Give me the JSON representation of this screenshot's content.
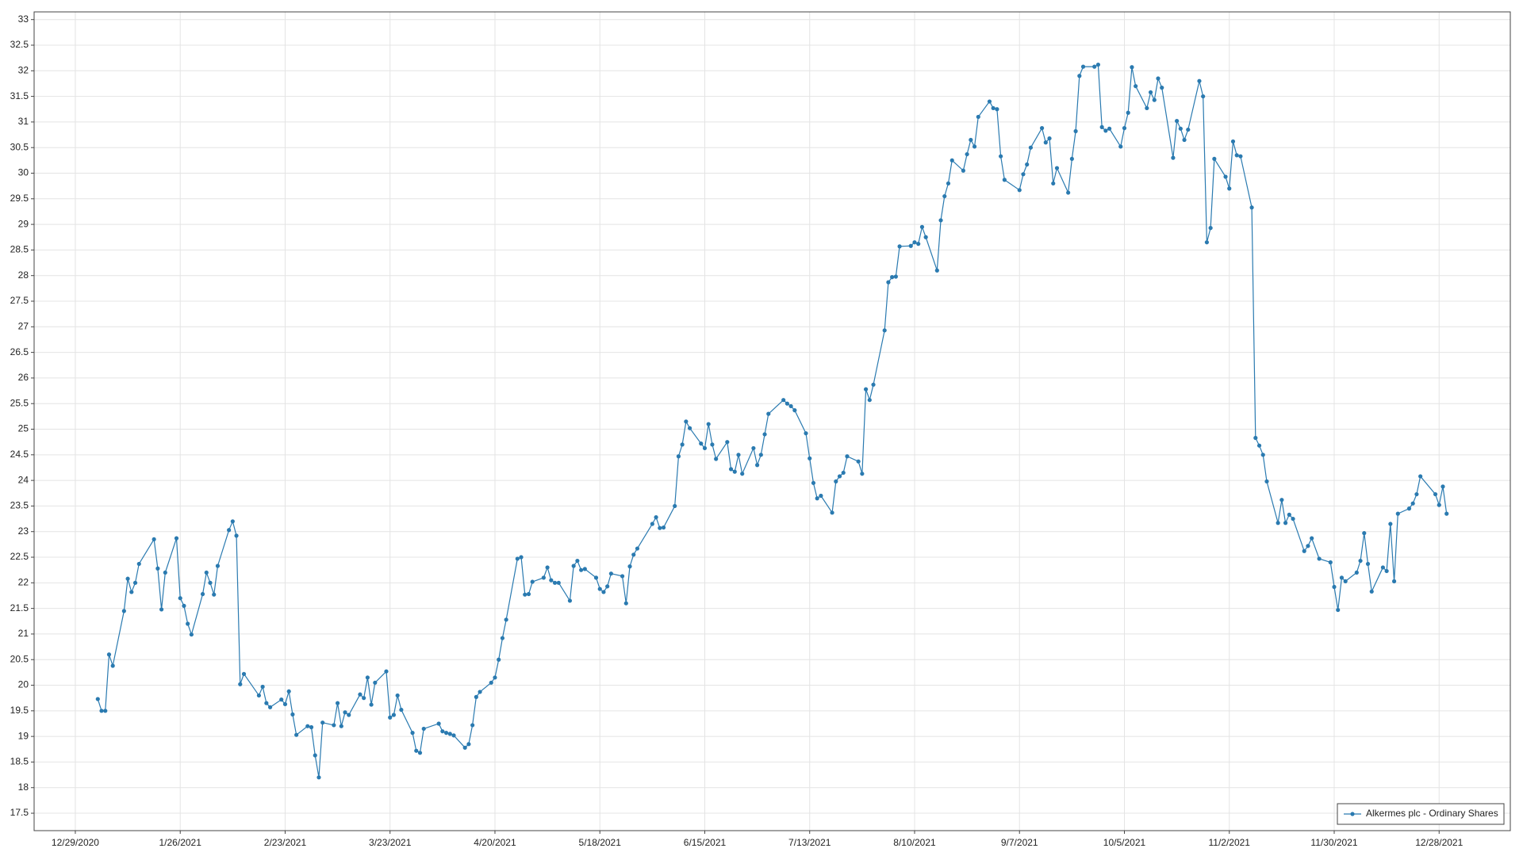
{
  "chart_data": {
    "type": "line",
    "x": [
      "2021-01-04",
      "2021-01-05",
      "2021-01-06",
      "2021-01-07",
      "2021-01-08",
      "2021-01-11",
      "2021-01-12",
      "2021-01-13",
      "2021-01-14",
      "2021-01-15",
      "2021-01-19",
      "2021-01-20",
      "2021-01-21",
      "2021-01-22",
      "2021-01-25",
      "2021-01-26",
      "2021-01-27",
      "2021-01-28",
      "2021-01-29",
      "2021-02-01",
      "2021-02-02",
      "2021-02-03",
      "2021-02-04",
      "2021-02-05",
      "2021-02-08",
      "2021-02-09",
      "2021-02-10",
      "2021-02-11",
      "2021-02-12",
      "2021-02-16",
      "2021-02-17",
      "2021-02-18",
      "2021-02-19",
      "2021-02-22",
      "2021-02-23",
      "2021-02-24",
      "2021-02-25",
      "2021-02-26",
      "2021-03-01",
      "2021-03-02",
      "2021-03-03",
      "2021-03-04",
      "2021-03-05",
      "2021-03-08",
      "2021-03-09",
      "2021-03-10",
      "2021-03-11",
      "2021-03-12",
      "2021-03-15",
      "2021-03-16",
      "2021-03-17",
      "2021-03-18",
      "2021-03-19",
      "2021-03-22",
      "2021-03-23",
      "2021-03-24",
      "2021-03-25",
      "2021-03-26",
      "2021-03-29",
      "2021-03-30",
      "2021-03-31",
      "2021-04-01",
      "2021-04-05",
      "2021-04-06",
      "2021-04-07",
      "2021-04-08",
      "2021-04-09",
      "2021-04-12",
      "2021-04-13",
      "2021-04-14",
      "2021-04-15",
      "2021-04-16",
      "2021-04-19",
      "2021-04-20",
      "2021-04-21",
      "2021-04-22",
      "2021-04-23",
      "2021-04-26",
      "2021-04-27",
      "2021-04-28",
      "2021-04-29",
      "2021-04-30",
      "2021-05-03",
      "2021-05-04",
      "2021-05-05",
      "2021-05-06",
      "2021-05-07",
      "2021-05-10",
      "2021-05-11",
      "2021-05-12",
      "2021-05-13",
      "2021-05-14",
      "2021-05-17",
      "2021-05-18",
      "2021-05-19",
      "2021-05-20",
      "2021-05-21",
      "2021-05-24",
      "2021-05-25",
      "2021-05-26",
      "2021-05-27",
      "2021-05-28",
      "2021-06-01",
      "2021-06-02",
      "2021-06-03",
      "2021-06-04",
      "2021-06-07",
      "2021-06-08",
      "2021-06-09",
      "2021-06-10",
      "2021-06-11",
      "2021-06-14",
      "2021-06-15",
      "2021-06-16",
      "2021-06-17",
      "2021-06-18",
      "2021-06-21",
      "2021-06-22",
      "2021-06-23",
      "2021-06-24",
      "2021-06-25",
      "2021-06-28",
      "2021-06-29",
      "2021-06-30",
      "2021-07-01",
      "2021-07-02",
      "2021-07-06",
      "2021-07-07",
      "2021-07-08",
      "2021-07-09",
      "2021-07-12",
      "2021-07-13",
      "2021-07-14",
      "2021-07-15",
      "2021-07-16",
      "2021-07-19",
      "2021-07-20",
      "2021-07-21",
      "2021-07-22",
      "2021-07-23",
      "2021-07-26",
      "2021-07-27",
      "2021-07-28",
      "2021-07-29",
      "2021-07-30",
      "2021-08-02",
      "2021-08-03",
      "2021-08-04",
      "2021-08-05",
      "2021-08-06",
      "2021-08-09",
      "2021-08-10",
      "2021-08-11",
      "2021-08-12",
      "2021-08-13",
      "2021-08-16",
      "2021-08-17",
      "2021-08-18",
      "2021-08-19",
      "2021-08-20",
      "2021-08-23",
      "2021-08-24",
      "2021-08-25",
      "2021-08-26",
      "2021-08-27",
      "2021-08-30",
      "2021-08-31",
      "2021-09-01",
      "2021-09-02",
      "2021-09-03",
      "2021-09-07",
      "2021-09-08",
      "2021-09-09",
      "2021-09-10",
      "2021-09-13",
      "2021-09-14",
      "2021-09-15",
      "2021-09-16",
      "2021-09-17",
      "2021-09-20",
      "2021-09-21",
      "2021-09-22",
      "2021-09-23",
      "2021-09-24",
      "2021-09-27",
      "2021-09-28",
      "2021-09-29",
      "2021-09-30",
      "2021-10-01",
      "2021-10-04",
      "2021-10-05",
      "2021-10-06",
      "2021-10-07",
      "2021-10-08",
      "2021-10-11",
      "2021-10-12",
      "2021-10-13",
      "2021-10-14",
      "2021-10-15",
      "2021-10-18",
      "2021-10-19",
      "2021-10-20",
      "2021-10-21",
      "2021-10-22",
      "2021-10-25",
      "2021-10-26",
      "2021-10-27",
      "2021-10-28",
      "2021-10-29",
      "2021-11-01",
      "2021-11-02",
      "2021-11-03",
      "2021-11-04",
      "2021-11-05",
      "2021-11-08",
      "2021-11-09",
      "2021-11-10",
      "2021-11-11",
      "2021-11-12",
      "2021-11-15",
      "2021-11-16",
      "2021-11-17",
      "2021-11-18",
      "2021-11-19",
      "2021-11-22",
      "2021-11-23",
      "2021-11-24",
      "2021-11-26",
      "2021-11-29",
      "2021-11-30",
      "2021-12-01",
      "2021-12-02",
      "2021-12-03",
      "2021-12-06",
      "2021-12-07",
      "2021-12-08",
      "2021-12-09",
      "2021-12-10",
      "2021-12-13",
      "2021-12-14",
      "2021-12-15",
      "2021-12-16",
      "2021-12-17",
      "2021-12-20",
      "2021-12-21",
      "2021-12-22",
      "2021-12-23",
      "2021-12-27",
      "2021-12-28",
      "2021-12-29",
      "2021-12-30"
    ],
    "series": [
      {
        "name": "Alkermes plc - Ordinary Shares",
        "color": "#2a7ab0",
        "values": [
          19.73,
          19.5,
          19.5,
          20.6,
          20.38,
          21.45,
          22.08,
          21.82,
          22.0,
          22.37,
          22.85,
          22.28,
          21.48,
          22.2,
          22.87,
          21.7,
          21.55,
          21.2,
          20.99,
          21.78,
          22.2,
          22.0,
          21.77,
          22.33,
          23.03,
          23.2,
          22.92,
          20.02,
          20.22,
          19.8,
          19.97,
          19.65,
          19.57,
          19.72,
          19.63,
          19.88,
          19.43,
          19.03,
          19.2,
          19.18,
          18.63,
          18.2,
          19.27,
          19.22,
          19.65,
          19.2,
          19.47,
          19.42,
          19.82,
          19.75,
          20.15,
          19.62,
          20.05,
          20.27,
          19.37,
          19.42,
          19.8,
          19.52,
          19.07,
          18.72,
          18.68,
          19.15,
          19.25,
          19.1,
          19.07,
          19.05,
          19.02,
          18.78,
          18.85,
          19.22,
          19.77,
          19.87,
          20.05,
          20.15,
          20.5,
          20.92,
          21.28,
          22.47,
          22.5,
          21.77,
          21.78,
          22.02,
          22.1,
          22.3,
          22.05,
          22.0,
          22.0,
          21.65,
          22.33,
          22.43,
          22.25,
          22.27,
          22.1,
          21.88,
          21.82,
          21.93,
          22.18,
          22.13,
          21.6,
          22.32,
          22.55,
          22.67,
          23.15,
          23.28,
          23.07,
          23.08,
          23.5,
          24.47,
          24.7,
          25.15,
          25.02,
          24.72,
          24.63,
          25.1,
          24.7,
          24.42,
          24.75,
          24.22,
          24.17,
          24.5,
          24.13,
          24.63,
          24.3,
          24.5,
          24.9,
          25.3,
          25.57,
          25.5,
          25.45,
          25.37,
          24.92,
          24.43,
          23.95,
          23.65,
          23.7,
          23.37,
          23.98,
          24.08,
          24.15,
          24.47,
          24.37,
          24.13,
          25.78,
          25.57,
          25.87,
          26.93,
          27.87,
          27.97,
          27.98,
          28.57,
          28.58,
          28.65,
          28.62,
          28.95,
          28.75,
          28.1,
          29.08,
          29.55,
          29.8,
          30.25,
          30.05,
          30.37,
          30.65,
          30.52,
          31.1,
          31.4,
          31.27,
          31.25,
          30.33,
          29.87,
          29.67,
          29.98,
          30.17,
          30.5,
          30.88,
          30.6,
          30.68,
          29.8,
          30.1,
          29.62,
          30.28,
          30.82,
          31.9,
          32.08,
          32.08,
          32.12,
          30.9,
          30.83,
          30.87,
          30.52,
          30.88,
          31.18,
          32.07,
          31.7,
          31.27,
          31.58,
          31.43,
          31.85,
          31.67,
          30.3,
          31.02,
          30.87,
          30.65,
          30.85,
          31.8,
          31.5,
          28.65,
          28.93,
          30.28,
          29.93,
          29.7,
          30.62,
          30.35,
          30.33,
          29.33,
          24.83,
          24.68,
          24.5,
          23.98,
          23.17,
          23.62,
          23.17,
          23.33,
          23.25,
          22.62,
          22.72,
          22.87,
          22.47,
          22.4,
          21.92,
          21.47,
          22.1,
          22.03,
          22.2,
          22.43,
          22.97,
          22.37,
          21.83,
          22.3,
          22.23,
          23.15,
          22.03,
          23.35,
          23.45,
          23.55,
          23.73,
          24.08,
          23.73,
          23.52,
          23.88,
          23.35
        ]
      }
    ],
    "xlim": [
      "2020-12-18",
      "2022-01-16"
    ],
    "xticks": [
      {
        "value": "2020-12-29",
        "label": "12/29/2020"
      },
      {
        "value": "2021-01-26",
        "label": "1/26/2021"
      },
      {
        "value": "2021-02-23",
        "label": "2/23/2021"
      },
      {
        "value": "2021-03-23",
        "label": "3/23/2021"
      },
      {
        "value": "2021-04-20",
        "label": "4/20/2021"
      },
      {
        "value": "2021-05-18",
        "label": "5/18/2021"
      },
      {
        "value": "2021-06-15",
        "label": "6/15/2021"
      },
      {
        "value": "2021-07-13",
        "label": "7/13/2021"
      },
      {
        "value": "2021-08-10",
        "label": "8/10/2021"
      },
      {
        "value": "2021-09-07",
        "label": "9/7/2021"
      },
      {
        "value": "2021-10-05",
        "label": "10/5/2021"
      },
      {
        "value": "2021-11-02",
        "label": "11/2/2021"
      },
      {
        "value": "2021-11-30",
        "label": "11/30/2021"
      },
      {
        "value": "2021-12-28",
        "label": "12/28/2021"
      }
    ],
    "ylim": [
      17.16,
      33.15
    ],
    "yticks": [
      17.5,
      18,
      18.5,
      19,
      19.5,
      20,
      20.5,
      21,
      21.5,
      22,
      22.5,
      23,
      23.5,
      24,
      24.5,
      25,
      25.5,
      26,
      26.5,
      27,
      27.5,
      28,
      28.5,
      29,
      29.5,
      30,
      30.5,
      31,
      31.5,
      32,
      32.5,
      33
    ],
    "grid": true,
    "legend": "lower right"
  }
}
